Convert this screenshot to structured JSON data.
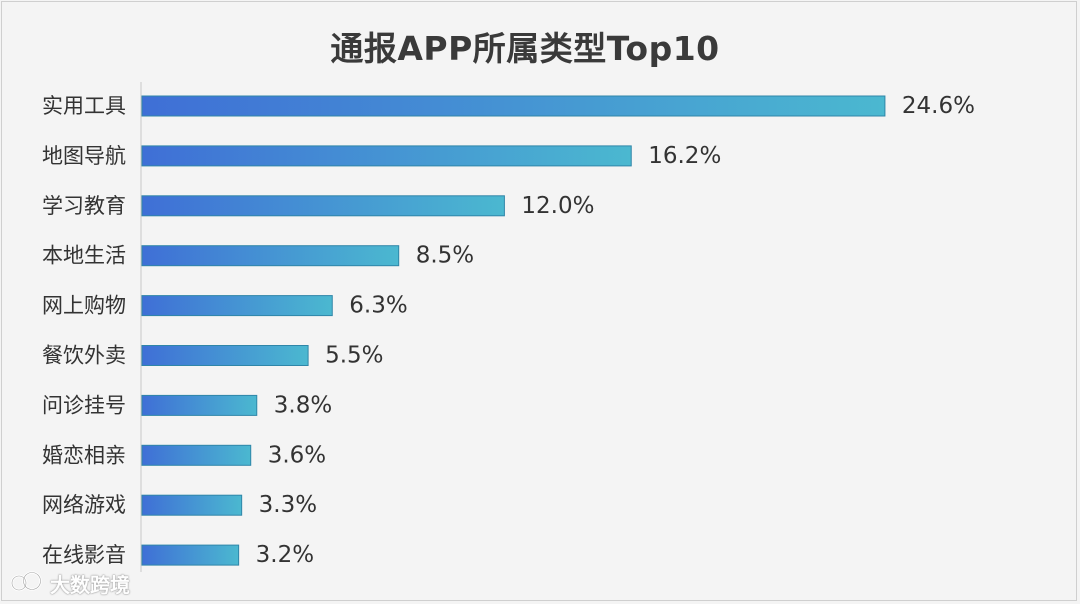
{
  "watermark": {
    "text": "大数跨境",
    "icon": "bubble-logo-icon"
  },
  "colors": {
    "bar_start": "#3f6fd6",
    "bar_end": "#4bb8d0",
    "bar_stroke": "#2f86a8",
    "axis": "#c8c8c8"
  },
  "chart_data": {
    "type": "bar",
    "orientation": "horizontal",
    "title": "通报APP所属类型Top10",
    "xlabel": "",
    "ylabel": "",
    "xlim": [
      0,
      26
    ],
    "grid": false,
    "categories": [
      "实用工具",
      "地图导航",
      "学习教育",
      "本地生活",
      "网上购物",
      "餐饮外卖",
      "问诊挂号",
      "婚恋相亲",
      "网络游戏",
      "在线影音"
    ],
    "values": [
      24.6,
      16.2,
      12.0,
      8.5,
      6.3,
      5.5,
      3.8,
      3.6,
      3.3,
      3.2
    ],
    "value_labels": [
      "24.6%",
      "16.2%",
      "12.0%",
      "8.5%",
      "6.3%",
      "5.5%",
      "3.8%",
      "3.6%",
      "3.3%",
      "3.2%"
    ]
  }
}
